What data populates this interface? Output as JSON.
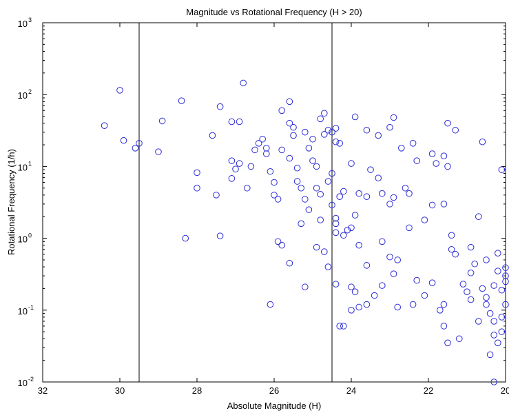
{
  "chart_data": {
    "type": "scatter",
    "title": "Magnitude vs Rotational Frequency (H > 20)",
    "xlabel": "Absolute Magnitude (H)",
    "ylabel": "Rotational Frequency (1/h)",
    "x_reversed": true,
    "xlim": [
      32,
      20
    ],
    "ylim": [
      0.01,
      1000
    ],
    "y_scale": "log",
    "grid": false,
    "marker": "open-circle",
    "marker_color": "#2b2bd6",
    "x_ticks": [
      "32",
      "30",
      "28",
      "26",
      "24",
      "22",
      "20"
    ],
    "y_ticks": [
      {
        "base": "10",
        "exp": "-2"
      },
      {
        "base": "10",
        "exp": "-1"
      },
      {
        "base": "10",
        "exp": "0"
      },
      {
        "base": "10",
        "exp": "1"
      },
      {
        "base": "10",
        "exp": "2"
      },
      {
        "base": "10",
        "exp": "3"
      }
    ],
    "reference_lines_x": [
      29.5,
      24.5
    ],
    "points": [
      [
        30.4,
        37
      ],
      [
        30.0,
        115
      ],
      [
        29.9,
        23
      ],
      [
        29.6,
        18
      ],
      [
        29.5,
        21
      ],
      [
        29.0,
        16
      ],
      [
        28.9,
        43
      ],
      [
        28.4,
        82
      ],
      [
        28.3,
        1.0
      ],
      [
        28.0,
        8.2
      ],
      [
        28.0,
        5.0
      ],
      [
        27.6,
        27
      ],
      [
        27.4,
        68
      ],
      [
        27.5,
        4.0
      ],
      [
        27.4,
        1.08
      ],
      [
        27.1,
        42
      ],
      [
        27.1,
        12
      ],
      [
        27.1,
        6.8
      ],
      [
        27.0,
        9.2
      ],
      [
        26.9,
        42
      ],
      [
        26.8,
        145
      ],
      [
        26.9,
        11
      ],
      [
        26.6,
        10
      ],
      [
        26.7,
        5
      ],
      [
        26.5,
        17
      ],
      [
        26.4,
        21
      ],
      [
        26.3,
        24
      ],
      [
        26.2,
        18
      ],
      [
        26.2,
        15
      ],
      [
        26.1,
        8.5
      ],
      [
        26.0,
        6.0
      ],
      [
        26.0,
        4.0
      ],
      [
        25.9,
        3.5
      ],
      [
        25.9,
        0.9
      ],
      [
        25.8,
        0.8
      ],
      [
        25.8,
        60
      ],
      [
        25.6,
        80
      ],
      [
        25.6,
        40
      ],
      [
        25.5,
        35
      ],
      [
        25.5,
        27
      ],
      [
        25.8,
        17
      ],
      [
        25.6,
        13
      ],
      [
        25.4,
        9.5
      ],
      [
        25.4,
        6.2
      ],
      [
        25.3,
        5.0
      ],
      [
        25.2,
        3.5
      ],
      [
        25.1,
        2.5
      ],
      [
        25.3,
        1.6
      ],
      [
        25.6,
        0.45
      ],
      [
        26.1,
        0.12
      ],
      [
        25.0,
        24
      ],
      [
        25.1,
        18
      ],
      [
        25.2,
        30
      ],
      [
        25.0,
        12
      ],
      [
        24.9,
        10
      ],
      [
        24.8,
        46
      ],
      [
        24.7,
        55
      ],
      [
        24.6,
        32
      ],
      [
        24.7,
        28
      ],
      [
        24.5,
        30
      ],
      [
        24.4,
        34
      ],
      [
        24.4,
        22
      ],
      [
        24.3,
        21
      ],
      [
        24.9,
        5.0
      ],
      [
        24.8,
        4.1
      ],
      [
        24.6,
        6.2
      ],
      [
        24.8,
        1.8
      ],
      [
        24.7,
        0.65
      ],
      [
        24.9,
        0.75
      ],
      [
        24.6,
        0.4
      ],
      [
        25.2,
        0.21
      ],
      [
        24.5,
        8.0
      ],
      [
        24.4,
        1.9
      ],
      [
        24.5,
        2.9
      ],
      [
        24.4,
        1.6
      ],
      [
        24.3,
        3.8
      ],
      [
        24.4,
        1.2
      ],
      [
        24.4,
        0.23
      ],
      [
        24.2,
        1.1
      ],
      [
        24.1,
        1.3
      ],
      [
        24.0,
        1.4
      ],
      [
        23.9,
        2.1
      ],
      [
        24.2,
        4.5
      ],
      [
        24.0,
        11
      ],
      [
        23.8,
        4.2
      ],
      [
        23.9,
        49
      ],
      [
        23.6,
        32
      ],
      [
        23.3,
        27
      ],
      [
        23.5,
        9.0
      ],
      [
        23.6,
        3.8
      ],
      [
        23.3,
        6.9
      ],
      [
        23.2,
        4.2
      ],
      [
        23.0,
        3.0
      ],
      [
        23.8,
        0.8
      ],
      [
        23.6,
        0.42
      ],
      [
        23.2,
        0.9
      ],
      [
        23.0,
        0.55
      ],
      [
        22.8,
        0.5
      ],
      [
        22.9,
        3.7
      ],
      [
        23.0,
        35
      ],
      [
        22.9,
        48
      ],
      [
        22.7,
        18
      ],
      [
        22.6,
        5.0
      ],
      [
        22.5,
        4.2
      ],
      [
        22.4,
        21
      ],
      [
        22.3,
        12
      ],
      [
        22.5,
        1.4
      ],
      [
        22.3,
        0.26
      ],
      [
        22.1,
        1.8
      ],
      [
        24.0,
        0.21
      ],
      [
        23.8,
        0.11
      ],
      [
        23.6,
        0.12
      ],
      [
        23.4,
        0.16
      ],
      [
        23.2,
        0.22
      ],
      [
        22.9,
        0.32
      ],
      [
        22.8,
        0.11
      ],
      [
        22.4,
        0.12
      ],
      [
        21.9,
        0.24
      ],
      [
        21.7,
        0.1
      ],
      [
        21.6,
        0.12
      ],
      [
        21.9,
        15
      ],
      [
        21.8,
        11
      ],
      [
        21.6,
        14
      ],
      [
        21.5,
        10
      ],
      [
        21.3,
        32
      ],
      [
        21.5,
        40
      ],
      [
        21.9,
        2.9
      ],
      [
        21.6,
        3.0
      ],
      [
        21.4,
        1.1
      ],
      [
        21.4,
        0.7
      ],
      [
        21.3,
        0.6
      ],
      [
        21.1,
        0.23
      ],
      [
        21.0,
        0.18
      ],
      [
        20.9,
        0.14
      ],
      [
        20.9,
        0.33
      ],
      [
        20.8,
        0.44
      ],
      [
        20.7,
        2.0
      ],
      [
        20.6,
        22
      ],
      [
        20.6,
        0.2
      ],
      [
        20.5,
        0.15
      ],
      [
        20.5,
        0.12
      ],
      [
        20.4,
        0.09
      ],
      [
        20.3,
        0.07
      ],
      [
        20.3,
        0.22
      ],
      [
        20.2,
        0.35
      ],
      [
        20.1,
        0.19
      ],
      [
        20.1,
        0.08
      ],
      [
        20.0,
        0.25
      ],
      [
        20.0,
        0.12
      ],
      [
        20.1,
        9.0
      ],
      [
        20.3,
        0.045
      ],
      [
        20.2,
        0.035
      ],
      [
        20.1,
        0.05
      ],
      [
        21.2,
        0.04
      ],
      [
        21.5,
        0.035
      ],
      [
        20.4,
        0.024
      ],
      [
        20.3,
        0.01
      ],
      [
        20.0,
        0.39
      ],
      [
        20.0,
        0.3
      ],
      [
        20.7,
        0.07
      ],
      [
        21.6,
        0.06
      ],
      [
        22.1,
        0.16
      ],
      [
        20.5,
        0.5
      ],
      [
        20.9,
        0.75
      ],
      [
        20.2,
        0.62
      ],
      [
        24.3,
        0.06
      ],
      [
        24.2,
        0.06
      ],
      [
        24.0,
        0.1
      ],
      [
        23.9,
        0.18
      ]
    ]
  }
}
